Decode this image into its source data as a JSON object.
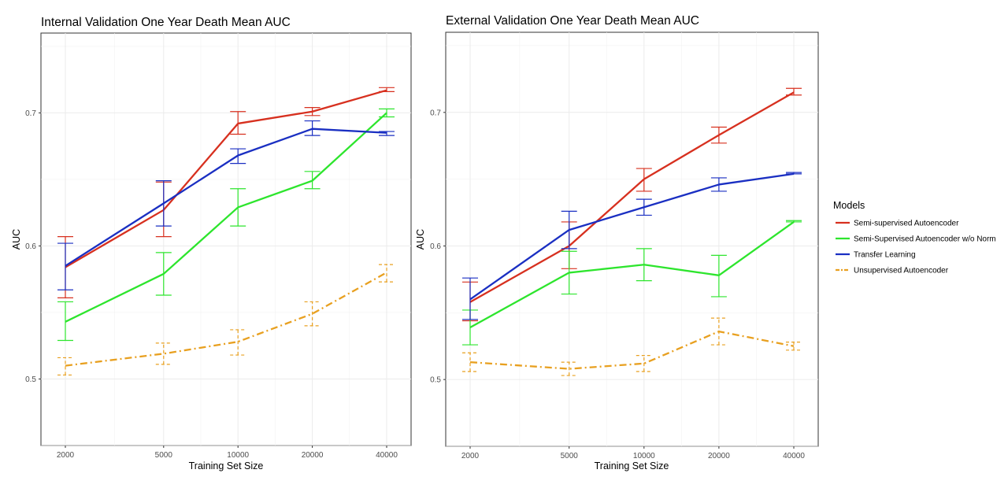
{
  "chart_data": [
    {
      "type": "line",
      "title": "Internal Validation One Year Death Mean AUC",
      "xlabel": "Training Set Size",
      "ylabel": "AUC",
      "x_scale": "log",
      "x": [
        2000,
        5000,
        10000,
        20000,
        40000
      ],
      "x_tick_labels": [
        "2000",
        "5000",
        "10000",
        "20000",
        "40000"
      ],
      "ylim": [
        0.45,
        0.76
      ],
      "y_ticks": [
        0.5,
        0.6,
        0.7
      ],
      "y_tick_labels": [
        "0.5",
        "0.6",
        "0.7"
      ],
      "grid": true,
      "series": [
        {
          "name": "Semi-supervised Autoencoder",
          "color": "#d7301f",
          "style": "solid",
          "values": [
            0.584,
            0.627,
            0.692,
            0.701,
            0.717
          ],
          "error_low": [
            0.561,
            0.607,
            0.684,
            0.698,
            0.716
          ],
          "error_high": [
            0.607,
            0.648,
            0.701,
            0.704,
            0.719
          ]
        },
        {
          "name": "Semi-Supervised Autoencoder w/o Norm",
          "color": "#2de52d",
          "style": "solid",
          "values": [
            0.543,
            0.579,
            0.629,
            0.649,
            0.7
          ],
          "error_low": [
            0.529,
            0.563,
            0.615,
            0.643,
            0.697
          ],
          "error_high": [
            0.558,
            0.595,
            0.643,
            0.656,
            0.703
          ]
        },
        {
          "name": "Transfer Learning",
          "color": "#1a2fc2",
          "style": "solid",
          "values": [
            0.585,
            0.632,
            0.668,
            0.688,
            0.685
          ],
          "error_low": [
            0.567,
            0.615,
            0.662,
            0.683,
            0.683
          ],
          "error_high": [
            0.602,
            0.649,
            0.673,
            0.694,
            0.686
          ]
        },
        {
          "name": "Unsupervised Autoencoder",
          "color": "#e8a020",
          "style": "dashdot",
          "values": [
            0.51,
            0.519,
            0.528,
            0.549,
            0.58
          ],
          "error_low": [
            0.503,
            0.511,
            0.518,
            0.54,
            0.573
          ],
          "error_high": [
            0.516,
            0.527,
            0.537,
            0.558,
            0.586
          ]
        }
      ]
    },
    {
      "type": "line",
      "title": "External Validation One Year Death Mean AUC",
      "xlabel": "Training Set Size",
      "ylabel": "AUC",
      "x_scale": "log",
      "x": [
        2000,
        5000,
        10000,
        20000,
        40000
      ],
      "x_tick_labels": [
        "2000",
        "5000",
        "10000",
        "20000",
        "40000"
      ],
      "ylim": [
        0.45,
        0.76
      ],
      "y_ticks": [
        0.5,
        0.6,
        0.7
      ],
      "y_tick_labels": [
        "0.5",
        "0.6",
        "0.7"
      ],
      "grid": true,
      "series": [
        {
          "name": "Semi-supervised Autoencoder",
          "color": "#d7301f",
          "style": "solid",
          "values": [
            0.558,
            0.6,
            0.65,
            0.683,
            0.715
          ],
          "error_low": [
            0.544,
            0.583,
            0.641,
            0.677,
            0.713
          ],
          "error_high": [
            0.573,
            0.618,
            0.658,
            0.689,
            0.718
          ]
        },
        {
          "name": "Semi-Supervised Autoencoder w/o Norm",
          "color": "#2de52d",
          "style": "solid",
          "values": [
            0.539,
            0.58,
            0.586,
            0.578,
            0.618
          ],
          "error_low": [
            0.526,
            0.564,
            0.574,
            0.562,
            0.618
          ],
          "error_high": [
            0.552,
            0.596,
            0.598,
            0.593,
            0.619
          ]
        },
        {
          "name": "Transfer Learning",
          "color": "#1a2fc2",
          "style": "solid",
          "values": [
            0.56,
            0.612,
            0.629,
            0.646,
            0.654
          ],
          "error_low": [
            0.545,
            0.598,
            0.623,
            0.641,
            0.654
          ],
          "error_high": [
            0.576,
            0.626,
            0.635,
            0.651,
            0.655
          ]
        },
        {
          "name": "Unsupervised Autoencoder",
          "color": "#e8a020",
          "style": "dashdot",
          "values": [
            0.513,
            0.508,
            0.512,
            0.536,
            0.525
          ],
          "error_low": [
            0.506,
            0.503,
            0.506,
            0.526,
            0.522
          ],
          "error_high": [
            0.52,
            0.513,
            0.518,
            0.546,
            0.528
          ]
        }
      ]
    }
  ],
  "legend": {
    "title": "Models",
    "placement": "right",
    "entries": [
      {
        "label": "Semi-supervised Autoencoder",
        "color": "#d7301f",
        "style": "solid"
      },
      {
        "label": "Semi-Supervised Autoencoder w/o Norm",
        "color": "#2de52d",
        "style": "solid"
      },
      {
        "label": "Transfer Learning",
        "color": "#1a2fc2",
        "style": "solid"
      },
      {
        "label": "Unsupervised Autoencoder",
        "color": "#e8a020",
        "style": "dashdot"
      }
    ]
  }
}
